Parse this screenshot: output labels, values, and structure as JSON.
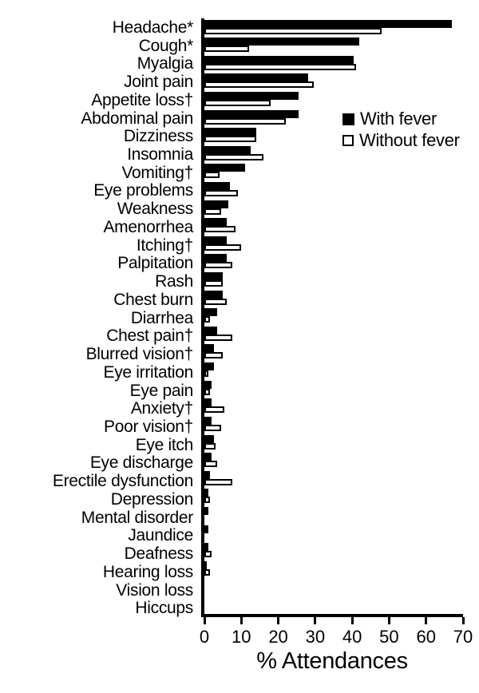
{
  "chart_data": {
    "type": "bar",
    "orientation": "horizontal",
    "title": "",
    "xlabel": "% Attendances",
    "ylabel": "",
    "xlim": [
      0,
      70
    ],
    "xticks": [
      0,
      10,
      20,
      30,
      40,
      50,
      60,
      70
    ],
    "grid": false,
    "legend_position": "inside-middle-right",
    "axis_color": "#000000",
    "background_color": "#ffffff",
    "categories": [
      "Headache*",
      "Cough*",
      "Myalgia",
      "Joint pain",
      "Appetite loss†",
      "Abdominal pain",
      "Dizziness",
      "Insomnia",
      "Vomiting†",
      "Eye problems",
      "Weakness",
      "Amenorrhea",
      "Itching†",
      "Palpitation",
      "Rash",
      "Chest burn",
      "Diarrhea",
      "Chest pain†",
      "Blurred vision†",
      "Eye irritation",
      "Eye pain",
      "Anxiety†",
      "Poor vision†",
      "Eye itch",
      "Eye discharge",
      "Erectile dysfunction",
      "Depression",
      "Mental disorder",
      "Jaundice",
      "Deafness",
      "Hearing loss",
      "Vision loss",
      "Hiccups"
    ],
    "series": [
      {
        "name": "With fever",
        "fill": "#000000",
        "values": [
          67,
          42,
          40.5,
          28,
          25.5,
          25.5,
          14,
          12.5,
          11,
          7,
          6.5,
          6,
          6,
          6,
          5,
          5,
          3.5,
          3.5,
          2.5,
          2.5,
          2,
          2,
          2,
          2.5,
          2,
          1.5,
          1,
          1,
          1,
          1,
          0.6,
          0,
          0
        ]
      },
      {
        "name": "Without fever",
        "fill": "#ffffff",
        "border": "#000000",
        "values": [
          48,
          12,
          41,
          29.5,
          18,
          22,
          14,
          16,
          4,
          9,
          4.5,
          8.5,
          10,
          7.5,
          5,
          6,
          1.5,
          7.5,
          5,
          1,
          1.5,
          5.5,
          4.5,
          3,
          3.5,
          7.5,
          1.5,
          0,
          0,
          2,
          1.5,
          0,
          0
        ]
      }
    ]
  }
}
